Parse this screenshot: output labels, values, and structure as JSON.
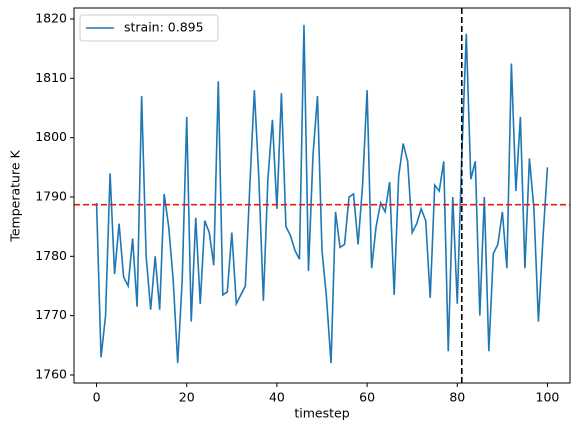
{
  "chart_data": {
    "type": "line",
    "x": [
      0,
      1,
      2,
      3,
      4,
      5,
      6,
      7,
      8,
      9,
      10,
      11,
      12,
      13,
      14,
      15,
      16,
      17,
      18,
      19,
      20,
      21,
      22,
      23,
      24,
      25,
      26,
      27,
      28,
      29,
      30,
      31,
      32,
      33,
      34,
      35,
      36,
      37,
      38,
      39,
      40,
      41,
      42,
      43,
      44,
      45,
      46,
      47,
      48,
      49,
      50,
      51,
      52,
      53,
      54,
      55,
      56,
      57,
      58,
      59,
      60,
      61,
      62,
      63,
      64,
      65,
      66,
      67,
      68,
      69,
      70,
      71,
      72,
      73,
      74,
      75,
      76,
      77,
      78,
      79,
      80,
      81,
      82,
      83,
      84,
      85,
      86,
      87,
      88,
      89,
      90,
      91,
      92,
      93,
      94,
      95,
      96,
      97,
      98,
      99,
      100
    ],
    "series": [
      {
        "name": "strain: 0.895",
        "color": "#1f77b4",
        "values": [
          1789,
          1763,
          1770,
          1794,
          1777,
          1785.5,
          1776.5,
          1775,
          1783,
          1771.5,
          1807,
          1780,
          1771,
          1780,
          1771,
          1790.5,
          1785,
          1776,
          1762,
          1776,
          1803.5,
          1769,
          1786.5,
          1772,
          1786,
          1784,
          1778.5,
          1809.5,
          1773.5,
          1774,
          1784,
          1772,
          1773.5,
          1775,
          1792,
          1808,
          1793,
          1772.5,
          1793,
          1803,
          1788,
          1807.5,
          1785,
          1783.5,
          1781,
          1779.5,
          1819,
          1777.5,
          1797,
          1807,
          1781,
          1773,
          1762,
          1787.5,
          1781.5,
          1782,
          1790,
          1790.5,
          1782,
          1792,
          1808,
          1778,
          1785,
          1789,
          1787.5,
          1792.5,
          1773.5,
          1793.5,
          1799,
          1796,
          1784,
          1785.5,
          1788,
          1786,
          1773,
          1792,
          1791,
          1796,
          1764,
          1790,
          1772,
          1797,
          1817.5,
          1793,
          1796,
          1770,
          1790,
          1764,
          1780.5,
          1782,
          1787.5,
          1778,
          1812.5,
          1791,
          1803.5,
          1778,
          1796.5,
          1788,
          1769,
          1783,
          1795
        ]
      }
    ],
    "xlabel": "timestep",
    "ylabel": "Temperature K",
    "xlim": [
      -5,
      105
    ],
    "ylim": [
      1758.65,
      1821.85
    ],
    "xticks": [
      0,
      20,
      40,
      60,
      80,
      100
    ],
    "yticks": [
      1760,
      1770,
      1780,
      1790,
      1800,
      1810,
      1820
    ],
    "hline": {
      "value": 1788.7,
      "color": "#e8190e"
    },
    "vline": {
      "value": 81,
      "color": "#000000"
    },
    "legend": "upper left"
  }
}
